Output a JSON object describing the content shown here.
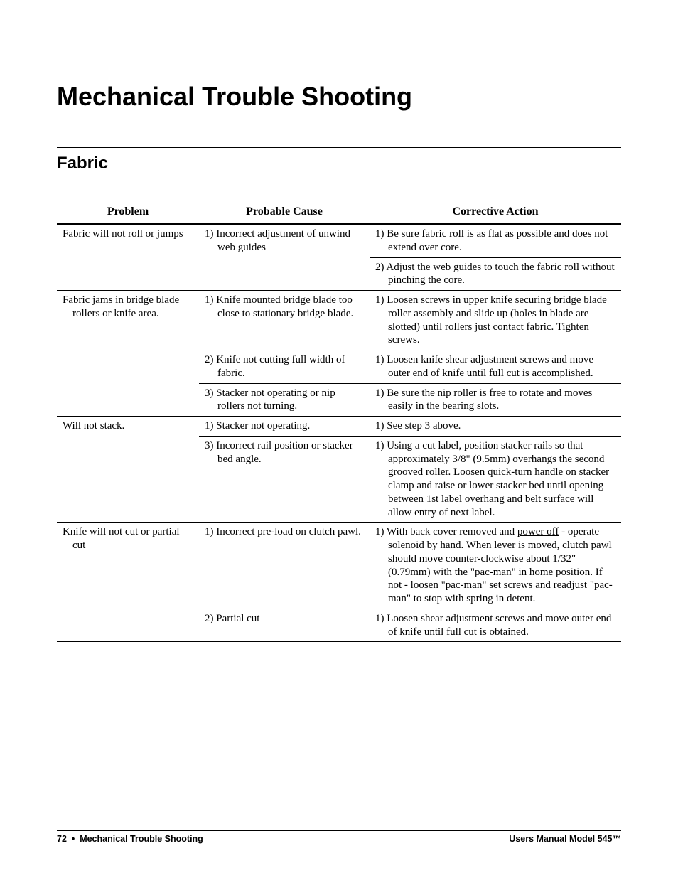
{
  "title": "Mechanical Trouble Shooting",
  "section": "Fabric",
  "columns": [
    "Problem",
    "Probable Cause",
    "Corrective Action"
  ],
  "groups": [
    {
      "problem": "Fabric will not roll or jumps",
      "rows": [
        {
          "cause": "1) Incorrect adjustment of unwind web guides",
          "action": "1) Be sure fabric roll is as flat as possible and does not extend over core.",
          "sep": "none"
        },
        {
          "cause": "",
          "action": "2) Adjust the web guides to touch the fabric roll without pinching the core.",
          "sep": "a"
        }
      ]
    },
    {
      "problem": "Fabric jams in bridge blade rollers or knife area.",
      "rows": [
        {
          "cause": "1) Knife mounted bridge blade too close to stationary bridge blade.",
          "action": "1) Loosen screws in upper knife securing bridge blade roller assembly and slide up (holes in blade are slotted) until rollers just contact fabric.  Tighten screws.",
          "sep": "none"
        },
        {
          "cause": "2) Knife not cutting full width of fabric.",
          "action": "1) Loosen knife shear adjustment screws and move outer end of knife until full cut is accomplished.",
          "sep": "ca"
        },
        {
          "cause": "3) Stacker not operating or nip rollers not turning.",
          "action": "1) Be sure the nip roller is free to rotate and moves easily in the bearing slots.",
          "sep": "ca"
        }
      ]
    },
    {
      "problem": "Will not stack.",
      "rows": [
        {
          "cause": "1) Stacker not operating.",
          "action": "1) See step 3 above.",
          "sep": "none"
        },
        {
          "cause": "3) Incorrect rail position or stacker bed angle.",
          "action": "1) Using a cut label, position stacker rails so that approximately 3/8\" (9.5mm) overhangs the second grooved roller.  Loosen quick-turn handle on stacker clamp and raise or lower stacker bed until opening between 1st label overhang and belt surface will allow entry of next label.",
          "sep": "ca"
        }
      ]
    },
    {
      "problem": "Knife will not cut or partial cut",
      "rows": [
        {
          "cause": "1) Incorrect pre-load on clutch pawl.",
          "action_html": "1) With back cover removed and <span class=\"underline\">power off</span> - operate solenoid by hand.  When lever is moved, clutch pawl should move counter-clockwise about 1/32\" (0.79mm) with the \"pac-man\" in home position.  If not - loosen \"pac-man\" set screws and readjust \"pac-man\" to stop with spring in detent.",
          "sep": "none"
        },
        {
          "cause": "2) Partial cut",
          "action": "1) Loosen shear adjustment screws and move outer end of knife until full cut is obtained.",
          "sep": "ca"
        }
      ]
    }
  ],
  "footer": {
    "page_number": "72",
    "section_label": "Mechanical Trouble Shooting",
    "right": "Users Manual Model 545™"
  },
  "colors": {
    "text": "#000000",
    "background": "#ffffff",
    "rule": "#000000"
  }
}
